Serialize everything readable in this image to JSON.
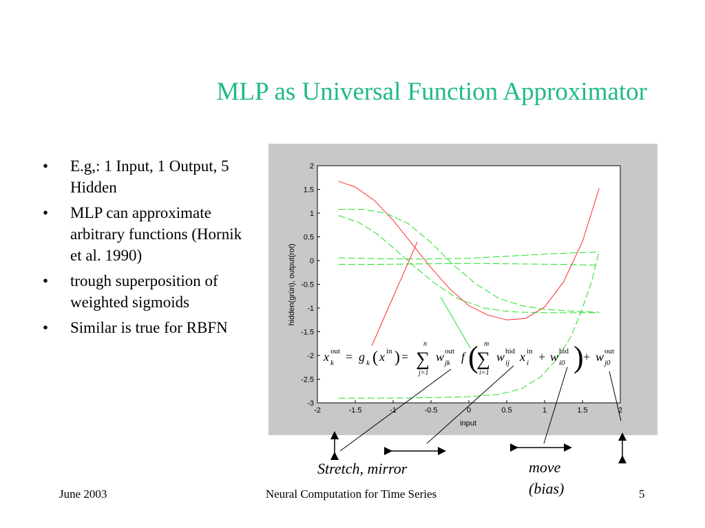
{
  "slide": {
    "title": "MLP as Universal Function Approximator",
    "bullets": [
      "E.g,: 1 Input, 1 Output, 5 Hidden",
      "MLP can approximate arbitrary functions (Hornik et al. 1990)",
      "trough superposition of weighted sigmoids",
      "Similar is true for RBFN"
    ],
    "annotations": {
      "stretch": "Stretch, mirror",
      "move_line1": "move",
      "move_line2": "(bias)"
    },
    "footer": {
      "date": "June 2003",
      "center": "Neural Computation for Time Series",
      "page": "5"
    }
  },
  "colors": {
    "title": "#1fb98a",
    "output_curve": "#ff2a2a",
    "hidden_curves": "#22dd22",
    "panel_bg": "#c8c8c8"
  },
  "chart_data": {
    "type": "line",
    "xlabel": "input",
    "ylabel": "hidden(grün), output(rot)",
    "xlim": [
      -2,
      2
    ],
    "ylim": [
      -3,
      2
    ],
    "xticks": [
      "-2",
      "-1.5",
      "-1",
      "-0.5",
      "0",
      "0.5",
      "1",
      "1.5",
      "2"
    ],
    "yticks": [
      "2",
      "1.5",
      "1",
      "0.5",
      "0",
      "-0.5",
      "-1",
      "-1.5",
      "-2",
      "-2.5",
      "-3"
    ],
    "series": [
      {
        "role": "output",
        "color": "red",
        "style": "solid",
        "points": [
          [
            -1.72,
            1.67
          ],
          [
            -1.5,
            1.55
          ],
          [
            -1.25,
            1.27
          ],
          [
            -1.0,
            0.85
          ],
          [
            -0.75,
            0.35
          ],
          [
            -0.5,
            -0.15
          ],
          [
            -0.25,
            -0.6
          ],
          [
            0.0,
            -0.95
          ],
          [
            0.25,
            -1.15
          ],
          [
            0.5,
            -1.25
          ],
          [
            0.75,
            -1.22
          ],
          [
            1.0,
            -0.98
          ],
          [
            1.25,
            -0.45
          ],
          [
            1.5,
            0.4
          ],
          [
            1.72,
            1.52
          ]
        ]
      },
      {
        "role": "hidden",
        "color": "green",
        "style": "dashed",
        "points": [
          [
            -1.72,
            1.08
          ],
          [
            -1.4,
            1.08
          ],
          [
            -1.1,
            1.0
          ],
          [
            -0.8,
            0.78
          ],
          [
            -0.5,
            0.38
          ],
          [
            -0.2,
            -0.1
          ],
          [
            0.1,
            -0.5
          ],
          [
            0.4,
            -0.8
          ],
          [
            0.7,
            -0.95
          ],
          [
            1.0,
            -1.03
          ],
          [
            1.4,
            -1.07
          ],
          [
            1.72,
            -1.09
          ]
        ]
      },
      {
        "role": "hidden",
        "color": "green",
        "style": "dashed",
        "points": [
          [
            -1.72,
            0.95
          ],
          [
            -1.45,
            0.8
          ],
          [
            -1.2,
            0.55
          ],
          [
            -0.95,
            0.2
          ],
          [
            -0.7,
            -0.15
          ],
          [
            -0.45,
            -0.48
          ],
          [
            -0.15,
            -0.8
          ],
          [
            0.2,
            -1.0
          ],
          [
            0.55,
            -1.08
          ],
          [
            1.0,
            -1.1
          ],
          [
            1.72,
            -1.1
          ]
        ]
      },
      {
        "role": "hidden",
        "color": "green",
        "style": "dashed",
        "points": [
          [
            -1.72,
            0.06
          ],
          [
            -1.2,
            0.04
          ],
          [
            -0.6,
            0.03
          ],
          [
            0.0,
            0.05
          ],
          [
            0.6,
            0.1
          ],
          [
            1.2,
            0.15
          ],
          [
            1.72,
            0.18
          ]
        ]
      },
      {
        "role": "hidden",
        "color": "green",
        "style": "dashed",
        "points": [
          [
            -1.72,
            -0.08
          ],
          [
            -1.2,
            -0.08
          ],
          [
            -0.6,
            -0.07
          ],
          [
            0.0,
            -0.06
          ],
          [
            0.6,
            -0.07
          ],
          [
            1.2,
            -0.08
          ],
          [
            1.72,
            -0.1
          ]
        ]
      },
      {
        "role": "hidden",
        "color": "green",
        "style": "dashed",
        "points": [
          [
            -1.72,
            -2.9
          ],
          [
            -1.0,
            -2.9
          ],
          [
            -0.5,
            -2.89
          ],
          [
            0.0,
            -2.87
          ],
          [
            0.4,
            -2.82
          ],
          [
            0.7,
            -2.7
          ],
          [
            0.95,
            -2.45
          ],
          [
            1.15,
            -2.1
          ],
          [
            1.35,
            -1.6
          ],
          [
            1.5,
            -1.0
          ],
          [
            1.62,
            -0.45
          ],
          [
            1.72,
            0.2
          ]
        ]
      }
    ],
    "formula": {
      "lhs": "x",
      "lhs_sup": "out",
      "lhs_sub": "k",
      "g": "g",
      "g_sub": "k",
      "x_in": "x",
      "x_in_sup": "in",
      "sum1_upper": "n",
      "sum1_lower": "j=1",
      "w1": "w",
      "w1_sup": "out",
      "w1_sub": "jk",
      "f": "f",
      "sum2_upper": "m",
      "sum2_lower": "i=1",
      "w2": "w",
      "w2_sup": "hid",
      "w2_sub": "ij",
      "x2": "x",
      "x2_sup": "in",
      "x2_sub": "i",
      "w3": "w",
      "w3_sup": "hid",
      "w3_sub": "i0",
      "w4": "w",
      "w4_sup": "out",
      "w4_sub": "j0",
      "eq": "=",
      "plus": "+"
    }
  }
}
